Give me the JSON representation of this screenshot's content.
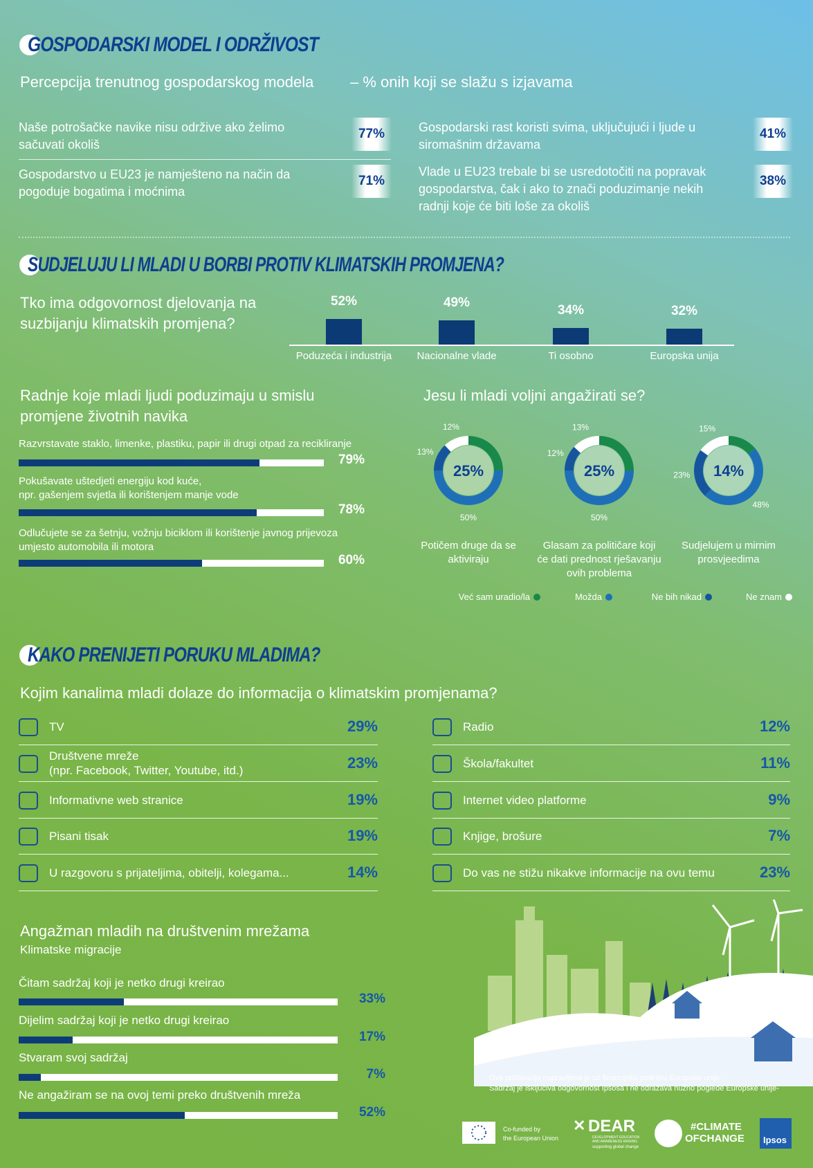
{
  "economic_model": {
    "title": "GOSPODARSKI MODEL I ODRŽIVOST",
    "subtitle": "Percepcija trenutnog gospodarskog modela",
    "subtitle_note": "– % onih koji se slažu s izjavama",
    "statements": [
      "Naše potrošačke navike nisu održive ako želimo sačuvati okoliš",
      "Gospodarstvo u EU23 je namješteno na način da pogoduje bogatima i moćnima",
      "Gospodarski rast koristi svima, uključujući i ljude u siromašnim državama",
      "Vlade u EU23 trebale bi se usredotočiti na popravak gospodarstva, čak i ako to znači poduzimanje nekih radnji koje će biti loše za okoliš"
    ],
    "values": [
      77,
      71,
      41,
      38
    ],
    "value_labels": [
      "77%",
      "71%",
      "41%",
      "38%"
    ]
  },
  "climate_action": {
    "title": "SUDJELUJU LI MLADI U BORBI PROTIV KLIMATSKIH PROMJENA?",
    "responsibility": {
      "type": "bar",
      "title": "Tko ima odgovornost djelovanja na suzbijanju klimatskih promjena?",
      "categories": [
        "Poduzeća i industrija",
        "Nacionalne vlade",
        "Ti osobno",
        "Europska unija"
      ],
      "values": [
        52,
        49,
        34,
        32
      ],
      "value_labels": [
        "52%",
        "49%",
        "34%",
        "32%"
      ],
      "color": "#0b3a75"
    },
    "actions": {
      "type": "hbar",
      "title": "Radnje koje mladi ljudi poduzimaju u smislu promjene životnih navika",
      "categories": [
        "Razvrstavate staklo, limenke, plastiku, papir ili drugi otpad za recikliranje",
        "Pokušavate uštedjeti energiju kod kuće,\nnpr. gašenjem svjetla ili korištenjem manje vode",
        "Odlučujete se za šetnju, vožnju biciklom ili korištenje javnog prijevoza\numjesto automobila ili motora"
      ],
      "values": [
        79,
        78,
        60
      ],
      "value_labels": [
        "79%",
        "78%",
        "60%"
      ],
      "xlim": [
        0,
        100
      ],
      "color": "#0d3c78"
    },
    "willingness": {
      "type": "donut",
      "title": "Jesu li mladi voljni angažirati se?",
      "categories": [
        "Potičem druge da se aktiviraju",
        "Glasam za političare koji će dati prednost rješavanju ovih problema",
        "Sudjelujem u mirnim prosvjeedima"
      ],
      "series": [
        {
          "name": "Već sam uradio/la",
          "color": "#18894a",
          "values": [
            25,
            25,
            14
          ],
          "value_labels": [
            "25%",
            "25%",
            "14%"
          ]
        },
        {
          "name": "Možda",
          "color": "#1f6fb8",
          "values": [
            50,
            50,
            48
          ],
          "value_labels": [
            "50%",
            "50%",
            "48%"
          ]
        },
        {
          "name": "Ne bih nikad",
          "color": "#16559e",
          "values": [
            13,
            12,
            23
          ],
          "value_labels": [
            "13%",
            "12%",
            "23%"
          ]
        },
        {
          "name": "Ne znam",
          "color": "#ffffff",
          "values": [
            12,
            13,
            15
          ],
          "value_labels": [
            "12%",
            "13%",
            "15%"
          ]
        }
      ]
    }
  },
  "channels": {
    "title": "KAKO PRENIJETI PORUKU MLADIMA?",
    "question": "Kojim kanalima mladi dolaze do informacija o klimatskim promjenama?",
    "categories": [
      "TV",
      "Društvene mreže\n(npr. Facebook, Twitter, Youtube, itd.)",
      "Informativne web stranice",
      "Pisani tisak",
      "U razgovoru s prijateljima, obitelji, kolegama...",
      "Radio",
      "Škola/fakultet",
      "Internet video platforme",
      "Knjige, brošure",
      "Do vas ne stižu nikakve informacije na ovu temu"
    ],
    "values": [
      29,
      23,
      19,
      19,
      14,
      12,
      11,
      9,
      7,
      23
    ],
    "value_labels": [
      "29%",
      "23%",
      "19%",
      "19%",
      "14%",
      "12%",
      "11%",
      "9%",
      "7%",
      "23%"
    ]
  },
  "social_media": {
    "type": "hbar",
    "title": "Angažman mladih na društvenim mrežama",
    "subtitle": "Klimatske migracije",
    "categories": [
      "Čitam sadržaj koji je netko drugi kreirao",
      "Dijelim sadržaj koji je netko drugi kreirao",
      "Stvaram svoj sadržaj",
      "Ne angažiram se na ovoj temi preko društvenih mreža"
    ],
    "values": [
      33,
      17,
      7,
      52
    ],
    "value_labels": [
      "33%",
      "17%",
      "7%",
      "52%"
    ],
    "xlim": [
      0,
      100
    ],
    "color": "#0d3c78"
  },
  "footer": {
    "disclaimer": [
      "Ova publikacija napravljena je uz financijsku podršku Europske unije.",
      "Sadržaj je isključiva odgovornost Ipsosa i ne odražava nužno poglede Europske unije-"
    ],
    "eu": [
      "Co-funded by",
      "the European Union"
    ],
    "dear": "DEAR",
    "dear_sub": [
      "DEVELOPMENT EDUCATION",
      "AND AWARENESS RAISING"
    ],
    "dear_tag": "supporting global change",
    "climate": [
      "#CLIMATE",
      "OFCHANGE"
    ],
    "ipsos": "Ipsos"
  }
}
